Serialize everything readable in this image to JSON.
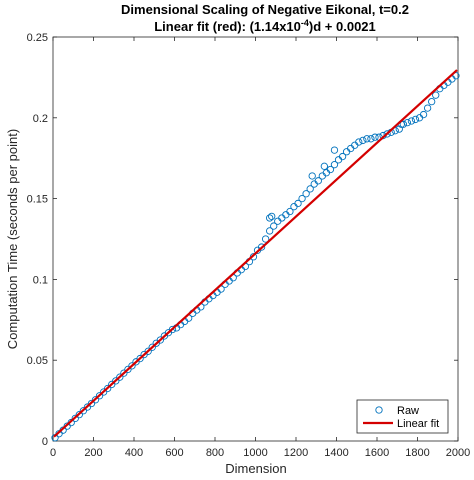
{
  "chart_data": {
    "type": "scatter",
    "title": "Dimensional Scaling of Negative Eikonal, t=0.2",
    "subtitle": {
      "prefix": "Linear fit (red): (1.14x10",
      "exponent": "-4",
      "suffix": ")d + 0.0021"
    },
    "xlabel": "Dimension",
    "ylabel": "Computation Time (seconds per point)",
    "xlim": [
      0,
      2000
    ],
    "ylim": [
      0,
      0.25
    ],
    "xticks": [
      0,
      200,
      400,
      600,
      800,
      1000,
      1200,
      1400,
      1600,
      1800,
      2000
    ],
    "yticks": [
      0,
      0.05,
      0.1,
      0.15,
      0.2,
      0.25
    ],
    "ytick_labels": [
      "0",
      "0.05",
      "0.1",
      "0.15",
      "0.2",
      "0.25"
    ],
    "grid": false,
    "legend_position": "bottom-right",
    "series": [
      {
        "name": "Raw",
        "kind": "scatter",
        "marker": "circle-open",
        "color": "#0072BD",
        "x": [
          10,
          30,
          50,
          70,
          90,
          110,
          130,
          150,
          170,
          190,
          210,
          230,
          250,
          270,
          290,
          310,
          330,
          350,
          370,
          390,
          410,
          430,
          450,
          470,
          490,
          510,
          530,
          550,
          570,
          590,
          610,
          630,
          650,
          670,
          690,
          710,
          730,
          750,
          770,
          790,
          810,
          830,
          850,
          870,
          890,
          910,
          930,
          950,
          970,
          990,
          1010,
          1030,
          1050,
          1070,
          1090,
          1110,
          1130,
          1150,
          1170,
          1190,
          1210,
          1230,
          1250,
          1270,
          1290,
          1310,
          1330,
          1350,
          1370,
          1390,
          1410,
          1430,
          1450,
          1470,
          1490,
          1510,
          1530,
          1550,
          1570,
          1590,
          1610,
          1630,
          1650,
          1670,
          1690,
          1710,
          1730,
          1750,
          1770,
          1790,
          1810,
          1830,
          1850,
          1870,
          1890,
          1910,
          1930,
          1950,
          1970,
          1990,
          1070,
          1080,
          1280,
          1340,
          1390,
          1720
        ],
        "y": [
          0.002,
          0.0045,
          0.0067,
          0.0092,
          0.0114,
          0.014,
          0.0163,
          0.0187,
          0.021,
          0.0232,
          0.0255,
          0.028,
          0.0303,
          0.0325,
          0.035,
          0.0372,
          0.0395,
          0.042,
          0.0443,
          0.0465,
          0.049,
          0.051,
          0.0535,
          0.0555,
          0.058,
          0.0605,
          0.0625,
          0.065,
          0.067,
          0.069,
          0.07,
          0.072,
          0.074,
          0.076,
          0.079,
          0.081,
          0.083,
          0.086,
          0.088,
          0.09,
          0.092,
          0.094,
          0.097,
          0.099,
          0.101,
          0.104,
          0.106,
          0.108,
          0.111,
          0.114,
          0.118,
          0.12,
          0.125,
          0.13,
          0.133,
          0.136,
          0.138,
          0.14,
          0.142,
          0.145,
          0.147,
          0.15,
          0.153,
          0.156,
          0.159,
          0.161,
          0.164,
          0.166,
          0.168,
          0.171,
          0.174,
          0.176,
          0.179,
          0.181,
          0.183,
          0.185,
          0.186,
          0.187,
          0.187,
          0.188,
          0.188,
          0.189,
          0.19,
          0.191,
          0.192,
          0.193,
          0.196,
          0.197,
          0.198,
          0.199,
          0.2,
          0.202,
          0.206,
          0.21,
          0.214,
          0.218,
          0.22,
          0.222,
          0.224,
          0.226,
          0.138,
          0.139,
          0.164,
          0.17,
          0.18,
          0.196
        ]
      },
      {
        "name": "Linear fit",
        "kind": "line",
        "color": "#D40000",
        "slope": 0.000114,
        "intercept": 0.0021
      }
    ]
  }
}
